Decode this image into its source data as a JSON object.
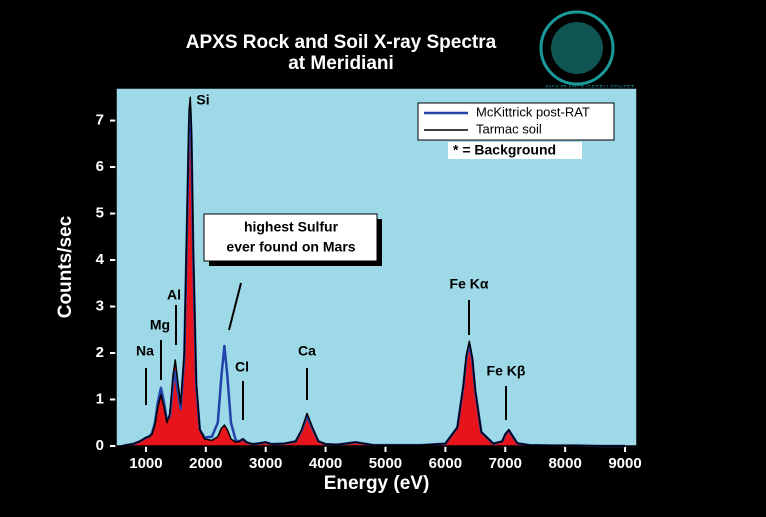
{
  "chart_data": {
    "type": "line",
    "title": "APXS Rock and Soil X-ray Spectra",
    "subtitle": "at Meridiani",
    "x_label": "Energy (eV)",
    "y_label": "Counts/sec",
    "logo_text": "MAX-PLANCK-GESELLSCHAFT",
    "x": [
      600,
      800,
      900,
      1000,
      1050,
      1100,
      1150,
      1200,
      1250,
      1300,
      1350,
      1400,
      1450,
      1490,
      1530,
      1580,
      1640,
      1690,
      1720,
      1740,
      1760,
      1790,
      1840,
      1900,
      1980,
      2100,
      2200,
      2260,
      2310,
      2360,
      2420,
      2500,
      2560,
      2620,
      2680,
      2780,
      2900,
      3000,
      3100,
      3300,
      3500,
      3600,
      3690,
      3780,
      3880,
      4000,
      4200,
      4500,
      4800,
      5200,
      5600,
      6000,
      6200,
      6300,
      6350,
      6400,
      6450,
      6500,
      6600,
      6800,
      6950,
      7000,
      7060,
      7120,
      7200,
      7400,
      7800,
      8200,
      8600,
      9000
    ],
    "series": [
      {
        "name": "McKittrick post-RAT",
        "color": "#2244aa",
        "values": [
          0.0,
          0.05,
          0.1,
          0.18,
          0.2,
          0.27,
          0.5,
          0.95,
          1.25,
          0.95,
          0.55,
          0.65,
          1.3,
          1.6,
          1.2,
          0.8,
          1.9,
          5.0,
          6.9,
          7.3,
          6.6,
          4.1,
          1.3,
          0.35,
          0.18,
          0.2,
          0.5,
          1.5,
          2.15,
          1.5,
          0.5,
          0.12,
          0.1,
          0.15,
          0.08,
          0.04,
          0.06,
          0.08,
          0.04,
          0.05,
          0.1,
          0.33,
          0.65,
          0.38,
          0.1,
          0.04,
          0.03,
          0.08,
          0.02,
          0.02,
          0.02,
          0.05,
          0.4,
          1.28,
          1.9,
          2.2,
          1.86,
          1.18,
          0.3,
          0.05,
          0.1,
          0.25,
          0.34,
          0.22,
          0.06,
          0.02,
          0.01,
          0.01,
          0.0,
          0.0
        ]
      },
      {
        "name": "Tarmac soil",
        "color": "#000000",
        "fill": "#e8141c",
        "values": [
          0.0,
          0.05,
          0.1,
          0.18,
          0.2,
          0.25,
          0.45,
          0.85,
          1.1,
          0.85,
          0.5,
          0.7,
          1.5,
          1.85,
          1.4,
          0.9,
          2.0,
          5.2,
          7.2,
          7.5,
          6.8,
          4.3,
          1.4,
          0.35,
          0.15,
          0.12,
          0.2,
          0.38,
          0.45,
          0.35,
          0.15,
          0.08,
          0.1,
          0.15,
          0.08,
          0.04,
          0.06,
          0.08,
          0.04,
          0.05,
          0.1,
          0.35,
          0.7,
          0.4,
          0.1,
          0.04,
          0.03,
          0.08,
          0.02,
          0.02,
          0.02,
          0.05,
          0.4,
          1.3,
          1.95,
          2.25,
          1.9,
          1.2,
          0.3,
          0.05,
          0.1,
          0.25,
          0.35,
          0.22,
          0.06,
          0.02,
          0.01,
          0.01,
          0.0,
          0.0
        ]
      }
    ],
    "xlim": [
      500,
      9200
    ],
    "ylim": [
      0,
      7.7
    ],
    "xticks": [
      1000,
      2000,
      3000,
      4000,
      5000,
      6000,
      7000,
      8000,
      9000
    ],
    "yticks": [
      0,
      1,
      2,
      3,
      4,
      5,
      6,
      7
    ],
    "plot_background": "#9dd9e6",
    "legend": "upper right",
    "legend_note": "* = Background",
    "annotations": [
      "Na",
      "Mg",
      "Al",
      "Si",
      "Cl",
      "Ca",
      "Fe Kα",
      "Fe Kβ"
    ],
    "callout": [
      "highest Sulfur",
      "ever found on Mars"
    ]
  }
}
